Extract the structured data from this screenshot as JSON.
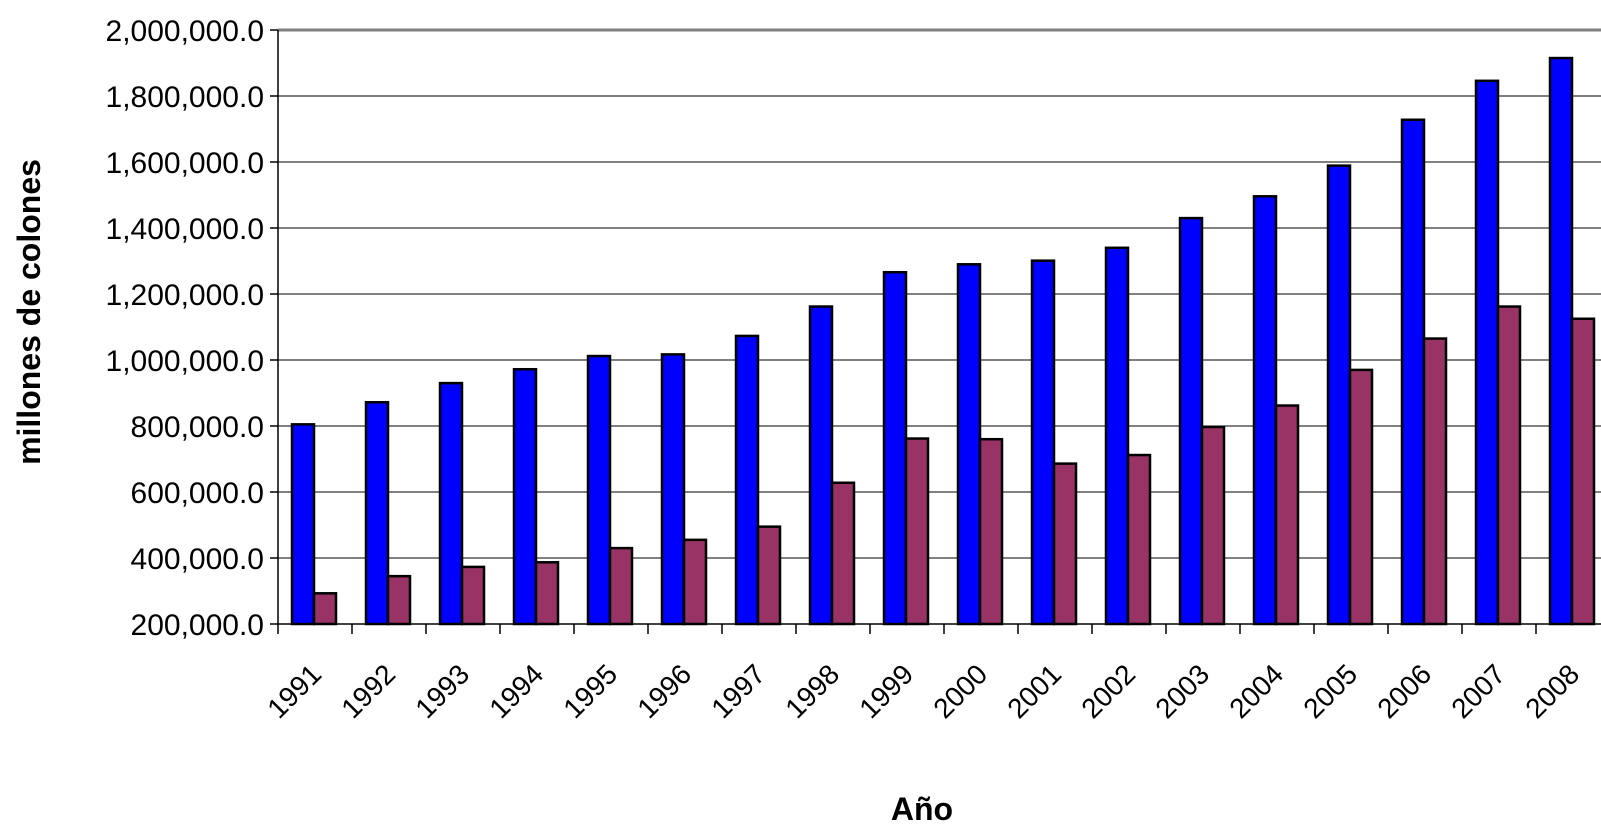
{
  "chart_data": {
    "type": "bar",
    "title": "",
    "xlabel": "Año",
    "ylabel": "millones de colones",
    "ylim": [
      200000,
      2000000
    ],
    "yticks": [
      "200,000.0",
      "400,000.0",
      "600,000.0",
      "800,000.0",
      "1,000,000.0",
      "1,200,000.0",
      "1,400,000.0",
      "1,600,000.0",
      "1,800,000.0",
      "2,000,000.0"
    ],
    "grid": true,
    "legend": "none",
    "categories": [
      "1991",
      "1992",
      "1993",
      "1994",
      "1995",
      "1996",
      "1997",
      "1998",
      "1999",
      "2000",
      "2001",
      "2002",
      "2003",
      "2004",
      "2005",
      "2006",
      "2007",
      "2008"
    ],
    "series": [
      {
        "color": "#0000ff",
        "values": [
          805000,
          872000,
          930000,
          972000,
          1012000,
          1017000,
          1073000,
          1162000,
          1266000,
          1290000,
          1301000,
          1340000,
          1430000,
          1496000,
          1589000,
          1728000,
          1846000,
          1915000
        ]
      },
      {
        "color": "#993366",
        "values": [
          293000,
          345000,
          373000,
          387000,
          430000,
          455000,
          495000,
          628000,
          762000,
          760000,
          686000,
          712000,
          797000,
          862000,
          970000,
          1065000,
          1162000,
          1125000
        ]
      }
    ]
  }
}
